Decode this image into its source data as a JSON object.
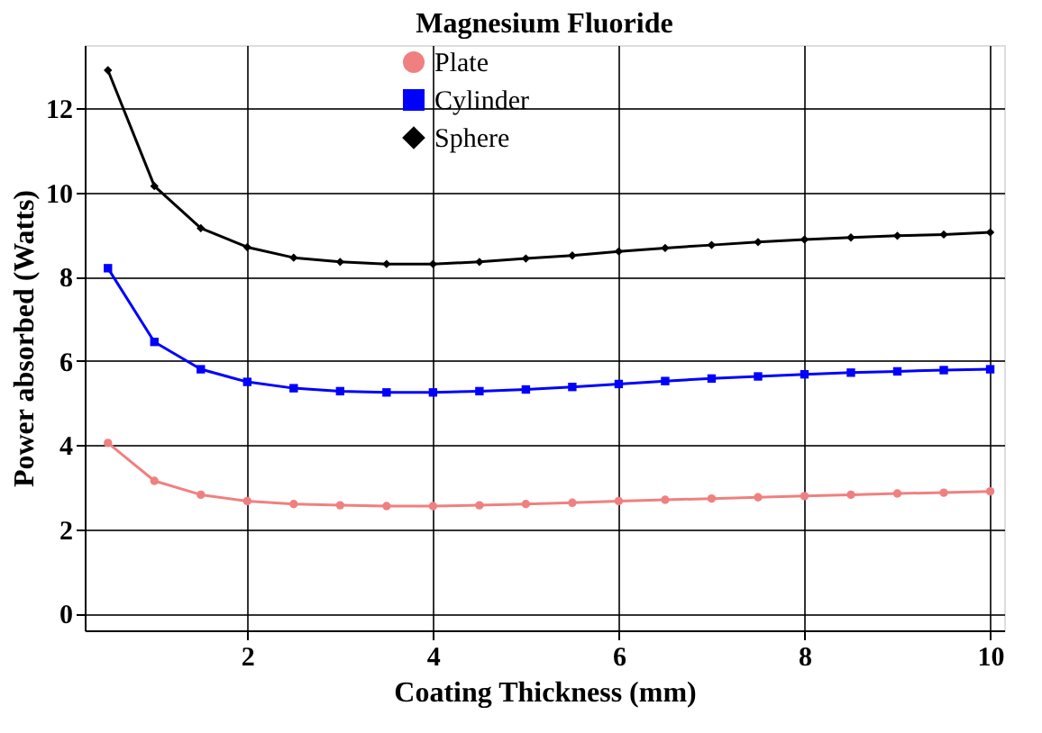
{
  "chart_data": {
    "type": "line",
    "title": "Magnesium Fluoride",
    "xlabel": "Coating Thickness (mm)",
    "ylabel": "Power absorbed (Watts)",
    "x": [
      0.5,
      1,
      1.5,
      2,
      2.5,
      3,
      3.5,
      4,
      4.5,
      5,
      5.5,
      6,
      6.5,
      7,
      7.5,
      8,
      8.5,
      9,
      9.5,
      10
    ],
    "series": [
      {
        "name": "Plate",
        "color": "#f08080",
        "marker": "circle",
        "values": [
          4.05,
          3.15,
          2.82,
          2.67,
          2.6,
          2.57,
          2.55,
          2.55,
          2.57,
          2.6,
          2.63,
          2.67,
          2.7,
          2.73,
          2.76,
          2.79,
          2.82,
          2.85,
          2.87,
          2.9
        ]
      },
      {
        "name": "Cylinder",
        "color": "#0000ff",
        "marker": "square",
        "values": [
          8.2,
          6.45,
          5.8,
          5.5,
          5.35,
          5.28,
          5.25,
          5.25,
          5.28,
          5.32,
          5.38,
          5.45,
          5.52,
          5.58,
          5.63,
          5.68,
          5.72,
          5.75,
          5.78,
          5.8
        ]
      },
      {
        "name": "Sphere",
        "color": "#000000",
        "marker": "diamond",
        "values": [
          12.9,
          10.15,
          9.15,
          8.7,
          8.45,
          8.35,
          8.3,
          8.3,
          8.35,
          8.43,
          8.5,
          8.6,
          8.68,
          8.75,
          8.82,
          8.88,
          8.93,
          8.97,
          9.0,
          9.05
        ]
      }
    ],
    "xlim": [
      0.25,
      10.15
    ],
    "xticks": [
      2,
      4,
      6,
      8,
      10
    ],
    "ylim": [
      -0.4,
      13.5
    ],
    "yticks": [
      0,
      2,
      4,
      6,
      8,
      10,
      12
    ],
    "grid": true,
    "legend": "top",
    "line_style": "solid"
  }
}
